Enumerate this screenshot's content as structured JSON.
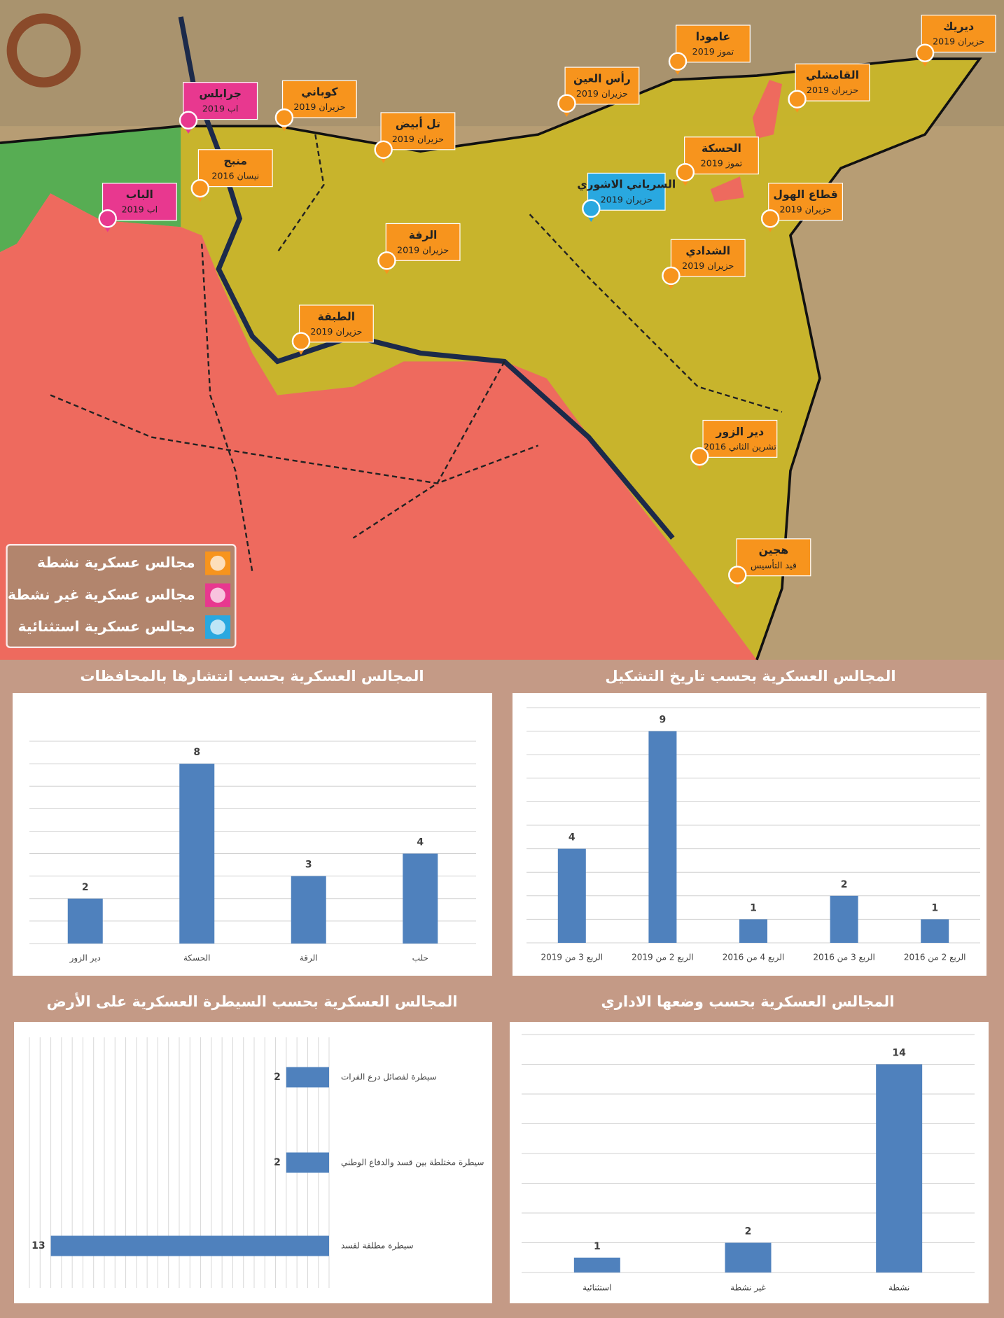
{
  "map": {
    "markers": [
      {
        "name": "ديريك",
        "date": "حزيران 2019",
        "color": "#f7941d"
      },
      {
        "name": "عامودا",
        "date": "تموز 2019",
        "color": "#f7941d"
      },
      {
        "name": "القامشلي",
        "date": "حزيران 2019",
        "color": "#f7941d"
      },
      {
        "name": "رأس العين",
        "date": "حزيران 2019",
        "color": "#f7941d"
      },
      {
        "name": "كوباني",
        "date": "حزيران 2019",
        "color": "#f7941d"
      },
      {
        "name": "جرابلس",
        "date": "اب 2019",
        "color": "#e8388f"
      },
      {
        "name": "تل أبيض",
        "date": "حزيران 2019",
        "color": "#f7941d"
      },
      {
        "name": "الحسكة",
        "date": "تموز 2019",
        "color": "#f7941d"
      },
      {
        "name": "منبج",
        "date": "نيسان 2016",
        "color": "#f7941d"
      },
      {
        "name": "السرياني الاشوري",
        "date": "حزيران 2019",
        "color": "#29a8e0"
      },
      {
        "name": "قطاع الهول",
        "date": "حزيران 2019",
        "color": "#f7941d"
      },
      {
        "name": "الباب",
        "date": "اب 2019",
        "color": "#e8388f"
      },
      {
        "name": "الرقة",
        "date": "حزيران 2019",
        "color": "#f7941d"
      },
      {
        "name": "الشدادي",
        "date": "حزيران 2019",
        "color": "#f7941d"
      },
      {
        "name": "الطبقة",
        "date": "حزيران 2019",
        "color": "#f7941d"
      },
      {
        "name": "دير الزور",
        "date": "تشرين الثاني 2016",
        "color": "#f7941d"
      },
      {
        "name": "هجين",
        "date": "قيد التأسيس",
        "color": "#f7941d"
      }
    ],
    "legend": [
      {
        "label": "مجالس عسكرية نشطة",
        "color": "#f7941d"
      },
      {
        "label": "مجالس عسكرية غير نشطة",
        "color": "#e8388f"
      },
      {
        "label": "مجالس عسكرية استثنائية",
        "color": "#29a8e0"
      }
    ]
  },
  "chart_data": [
    {
      "type": "bar",
      "title": "المجالس العسكرية بحسب انتشارها بالمحافظات",
      "categories": [
        "دير الزور",
        "الحسكة",
        "الرقة",
        "حلب"
      ],
      "values": [
        2,
        8,
        3,
        4
      ],
      "color": "#4f81bd",
      "ylim": [
        0,
        9
      ],
      "yticks": [
        0,
        1,
        2,
        3,
        4,
        5,
        6,
        7,
        8,
        9
      ],
      "grid": true,
      "tick_labels": false
    },
    {
      "type": "bar",
      "title": "المجالس العسكرية بحسب تاريخ التشكيل",
      "categories": [
        "الربع 3 من 2019",
        "الربع 2 من 2019",
        "الربع 4 من 2016",
        "الربع 3 من 2016",
        "الربع 2 من 2016"
      ],
      "values": [
        4,
        9,
        1,
        2,
        1
      ],
      "color": "#4f81bd",
      "ylim": [
        0,
        10
      ],
      "yticks": [
        0,
        1,
        2,
        3,
        4,
        5,
        6,
        7,
        8,
        9,
        10
      ],
      "grid": true,
      "tick_labels": false
    },
    {
      "type": "barh",
      "title": "المجالس العسكرية بحسب السيطرة العسكرية على الأرض",
      "categories": [
        "سيطرة لفصائل درع الفرات",
        "سيطرة مختلطة بين قسد والدفاع الوطني",
        "سيطرة مطلقة لقسد"
      ],
      "values": [
        2,
        2,
        13
      ],
      "color": "#4f81bd",
      "xlim": [
        0,
        14
      ],
      "xticks": [
        0,
        0.5,
        1,
        1.5,
        2,
        2.5,
        3,
        3.5,
        4,
        4.5,
        5,
        5.5,
        6,
        6.5,
        7,
        7.5,
        8,
        8.5,
        9,
        9.5,
        10,
        10.5,
        11,
        11.5,
        12,
        12.5,
        13,
        13.5,
        14
      ],
      "grid": true,
      "tick_labels": false
    },
    {
      "type": "bar",
      "title": "المجالس العسكرية بحسب وضعها الاداري",
      "categories": [
        "استثنائية",
        "غير نشطة",
        "نشطة"
      ],
      "values": [
        1,
        2,
        14
      ],
      "color": "#4f81bd",
      "ylim": [
        0,
        16
      ],
      "yticks": [
        0,
        2,
        4,
        6,
        8,
        10,
        12,
        14,
        16
      ],
      "grid": true,
      "tick_labels": false
    }
  ]
}
